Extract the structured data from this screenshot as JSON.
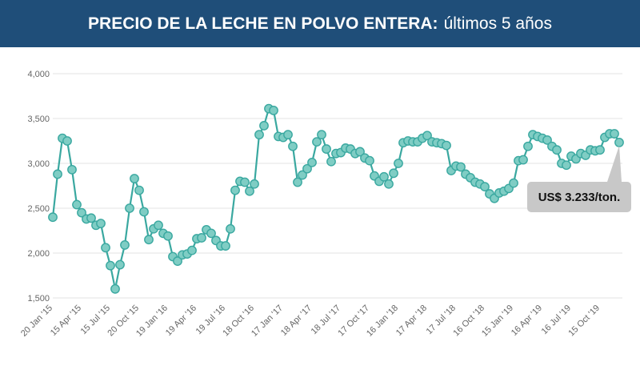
{
  "header": {
    "title_bold": "PRECIO DE LA LECHE EN POLVO ENTERA:",
    "title_rest": "últimos 5 años"
  },
  "colors": {
    "header_bg": "#1f4e79",
    "line": "#3aa8a0",
    "marker_fill": "#7fcdc4",
    "marker_stroke": "#3aa8a0",
    "callout_bg": "#c8c8c8"
  },
  "callout": {
    "text": "US$ 3.233/ton."
  },
  "chart_data": {
    "type": "line",
    "title": "PRECIO DE LA LECHE EN POLVO ENTERA: últimos 5 años",
    "ylim": [
      1500,
      4000
    ],
    "yticks": [
      1500,
      2000,
      2500,
      3000,
      3500,
      4000
    ],
    "ytick_labels": [
      "1,500",
      "2,000",
      "2,500",
      "3,000",
      "3,500",
      "4,000"
    ],
    "xtick_labels": [
      "20 Jan '15",
      "15 Apr '15",
      "15 Jul '15",
      "20 Oct '15",
      "19 Jan '16",
      "19 Apr '16",
      "19 Jul '16",
      "18 Oct '16",
      "17 Jan '17",
      "18 Apr '17",
      "18 Jul '17",
      "17 Oct '17",
      "16 Jan '18",
      "17 Apr '18",
      "17 Jul '18",
      "16 Oct '18",
      "15 Jan '19",
      "16 Apr '19",
      "16 Jul '19",
      "15 Oct '19"
    ],
    "xtick_index": [
      0,
      6,
      12,
      18,
      24,
      30,
      36,
      42,
      48,
      54,
      60,
      66,
      72,
      78,
      84,
      90,
      96,
      102,
      108,
      114
    ],
    "grid": true,
    "legend": "none",
    "series": [
      {
        "values": [
          2400,
          2880,
          3280,
          3250,
          2930,
          2540,
          2450,
          2380,
          2390,
          2310,
          2330,
          2060,
          1860,
          1600,
          1870,
          2090,
          2500,
          2830,
          2700,
          2460,
          2150,
          2270,
          2310,
          2220,
          2190,
          1960,
          1910,
          1980,
          1990,
          2030,
          2160,
          2170,
          2260,
          2220,
          2140,
          2080,
          2080,
          2270,
          2700,
          2800,
          2790,
          2690,
          2770,
          3320,
          3420,
          3610,
          3590,
          3300,
          3290,
          3320,
          3190,
          2790,
          2870,
          2940,
          3010,
          3240,
          3320,
          3160,
          3020,
          3110,
          3120,
          3170,
          3160,
          3110,
          3130,
          3060,
          3030,
          2860,
          2800,
          2850,
          2770,
          2890,
          3000,
          3230,
          3250,
          3240,
          3240,
          3280,
          3310,
          3240,
          3230,
          3220,
          3200,
          2920,
          2970,
          2960,
          2880,
          2840,
          2790,
          2770,
          2740,
          2660,
          2610,
          2670,
          2690,
          2720,
          2780,
          3030,
          3040,
          3190,
          3320,
          3300,
          3280,
          3260,
          3190,
          3150,
          3000,
          2980,
          3080,
          3050,
          3110,
          3090,
          3150,
          3140,
          3150,
          3290,
          3330,
          3330,
          3233
        ]
      }
    ],
    "annotation": "US$ 3.233/ton."
  }
}
